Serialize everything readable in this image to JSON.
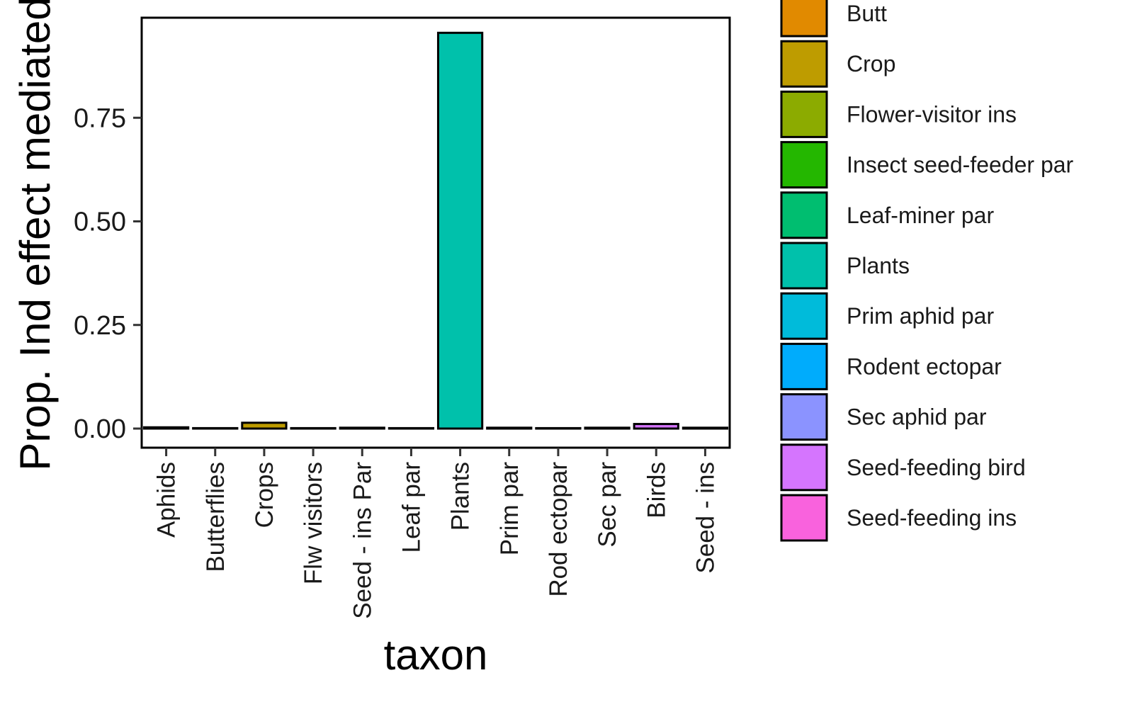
{
  "chart_data": {
    "type": "bar",
    "ylabel": "Prop. Ind effect mediated",
    "xlabel": "taxon",
    "ylim": [
      -0.045,
      1.0
    ],
    "yticks": [
      0.0,
      0.25,
      0.5,
      0.75
    ],
    "ytick_labels": [
      "0.00",
      "0.25",
      "0.50",
      "0.75"
    ],
    "grid": false,
    "legend_position": "right",
    "categories": [
      "Aphids",
      "Butterflies",
      "Crops",
      "Flw visitors",
      "Seed - ins Par",
      "Leaf par",
      "Plants",
      "Prim par",
      "Rod ectopar",
      "Sec par",
      "Birds",
      "Seed - ins"
    ],
    "values": [
      0.003,
      0.0005,
      0.014,
      0.0005,
      0.002,
      0.001,
      0.955,
      0.002,
      0.0005,
      0.002,
      0.011,
      0.002
    ],
    "bar_colors": [
      "#F8766D",
      "#E18A00",
      "#BE9C00",
      "#8CAB00",
      "#24B700",
      "#00BE70",
      "#00C1AB",
      "#00BBDA",
      "#00ACFC",
      "#8B93FF",
      "#D575FE",
      "#F962DD"
    ],
    "legend": [
      {
        "label": "Butt",
        "color": "#E18A00"
      },
      {
        "label": "Crop",
        "color": "#BE9C00"
      },
      {
        "label": "Flower-visitor ins",
        "color": "#8CAB00"
      },
      {
        "label": "Insect seed-feeder par",
        "color": "#24B700"
      },
      {
        "label": "Leaf-miner par",
        "color": "#00BE70"
      },
      {
        "label": "Plants",
        "color": "#00C1AB"
      },
      {
        "label": "Prim aphid par",
        "color": "#00BBDA"
      },
      {
        "label": "Rodent ectopar",
        "color": "#00ACFC"
      },
      {
        "label": "Sec aphid par",
        "color": "#8B93FF"
      },
      {
        "label": "Seed-feeding bird",
        "color": "#D575FE"
      },
      {
        "label": "Seed-feeding ins",
        "color": "#F962DD"
      }
    ]
  }
}
